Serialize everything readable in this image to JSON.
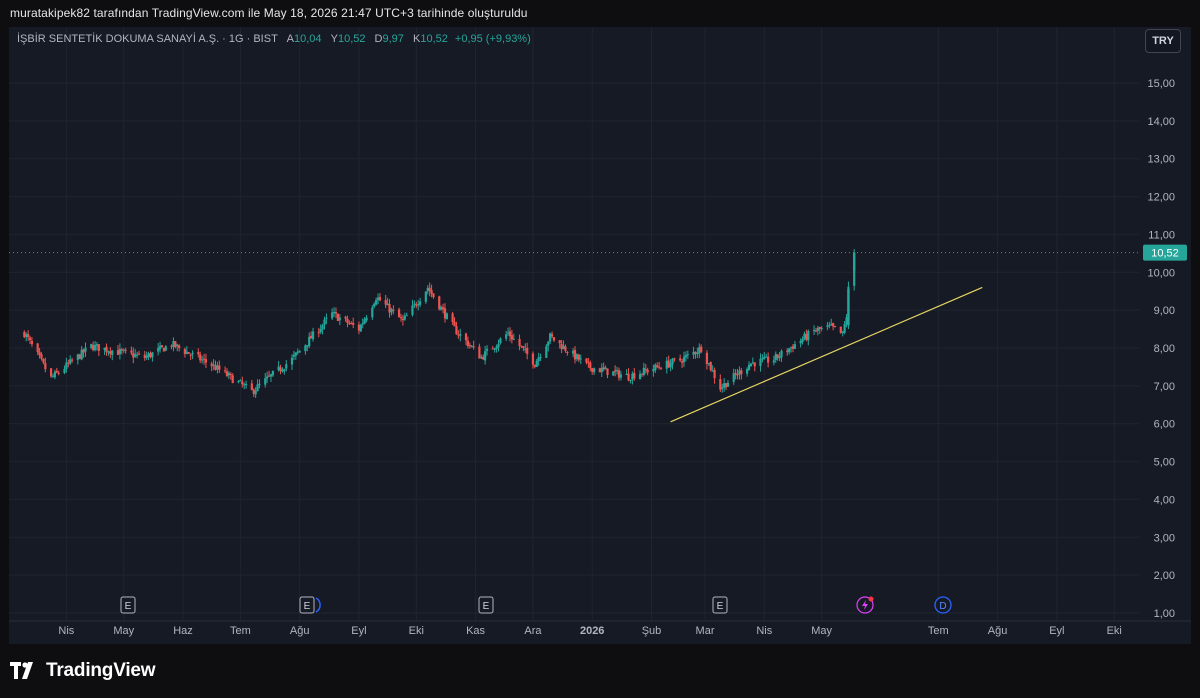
{
  "caption": "muratakipek82 tarafından TradingView.com ile May 18, 2026 21:47 UTC+3 tarihinde oluşturuldu",
  "legend": {
    "symbol": "İŞBİR SENTETİK DOKUMA SANAYİ A.Ş. · 1G · BIST",
    "open_label": "A",
    "open": "10,04",
    "high_label": "Y",
    "high": "10,52",
    "low_label": "D",
    "low": "9,97",
    "close_label": "K",
    "close": "10,52",
    "change": "+0,95 (+9,93%)"
  },
  "currency_button": "TRY",
  "brand": "TradingView",
  "colors": {
    "up": "#26a69a",
    "down": "#ef5350",
    "trendline": "#e6d562",
    "background": "#161a25",
    "grid": "#202430",
    "last_price": "#26a69a"
  },
  "chart_data": {
    "type": "candlestick",
    "interval": "1G",
    "ylim": [
      0.8,
      16.0
    ],
    "y_ticks": [
      "1,00",
      "2,00",
      "3,00",
      "4,00",
      "5,00",
      "6,00",
      "7,00",
      "8,00",
      "9,00",
      "10,00",
      "11,00",
      "12,00",
      "13,00",
      "14,00",
      "15,00"
    ],
    "x_ticks": [
      "Nis",
      "May",
      "Haz",
      "Tem",
      "Ağu",
      "Eyl",
      "Eki",
      "Kas",
      "Ara",
      "2026",
      "Şub",
      "Mar",
      "Nis",
      "May",
      "Tem",
      "Ağu",
      "Eyl",
      "Eki"
    ],
    "last_price_label": "10,52",
    "last_price": 10.52,
    "price_path": [
      {
        "date": "2025-03-10",
        "close": 8.4
      },
      {
        "date": "2025-03-24",
        "close": 7.2
      },
      {
        "date": "2025-04-14",
        "close": 8.05
      },
      {
        "date": "2025-05-12",
        "close": 7.75
      },
      {
        "date": "2025-05-26",
        "close": 8.1
      },
      {
        "date": "2025-06-16",
        "close": 7.55
      },
      {
        "date": "2025-07-07",
        "close": 6.85
      },
      {
        "date": "2025-07-28",
        "close": 7.7
      },
      {
        "date": "2025-08-18",
        "close": 8.9
      },
      {
        "date": "2025-09-01",
        "close": 8.5
      },
      {
        "date": "2025-09-10",
        "close": 9.35
      },
      {
        "date": "2025-09-24",
        "close": 8.7
      },
      {
        "date": "2025-10-07",
        "close": 9.6
      },
      {
        "date": "2025-10-21",
        "close": 8.5
      },
      {
        "date": "2025-11-04",
        "close": 7.75
      },
      {
        "date": "2025-11-18",
        "close": 8.4
      },
      {
        "date": "2025-12-02",
        "close": 7.6
      },
      {
        "date": "2025-12-10",
        "close": 8.3
      },
      {
        "date": "2025-12-30",
        "close": 7.5
      },
      {
        "date": "2026-01-20",
        "close": 7.25
      },
      {
        "date": "2026-02-17",
        "close": 7.7
      },
      {
        "date": "2026-02-27",
        "close": 8.0
      },
      {
        "date": "2026-03-09",
        "close": 6.95
      },
      {
        "date": "2026-03-25",
        "close": 7.6
      },
      {
        "date": "2026-04-06",
        "close": 7.7
      },
      {
        "date": "2026-04-27",
        "close": 8.45
      },
      {
        "date": "2026-05-06",
        "close": 8.55
      },
      {
        "date": "2026-05-12",
        "close": 8.35
      },
      {
        "date": "2026-05-14",
        "close": 8.85
      },
      {
        "date": "2026-05-15",
        "close": 9.55
      },
      {
        "date": "2026-05-18",
        "close": 10.52
      }
    ],
    "trendline": {
      "start": {
        "date": "2026-02-11",
        "price": 6.05
      },
      "end": {
        "date": "2026-07-24",
        "price": 9.6
      }
    },
    "event_markers": [
      {
        "type": "E",
        "name": "earnings"
      },
      {
        "type": "E",
        "name": "earnings"
      },
      {
        "type": "E",
        "name": "earnings"
      },
      {
        "type": "E",
        "name": "earnings"
      },
      {
        "type": "split",
        "name": "split"
      },
      {
        "type": "D",
        "name": "dividend"
      }
    ]
  }
}
